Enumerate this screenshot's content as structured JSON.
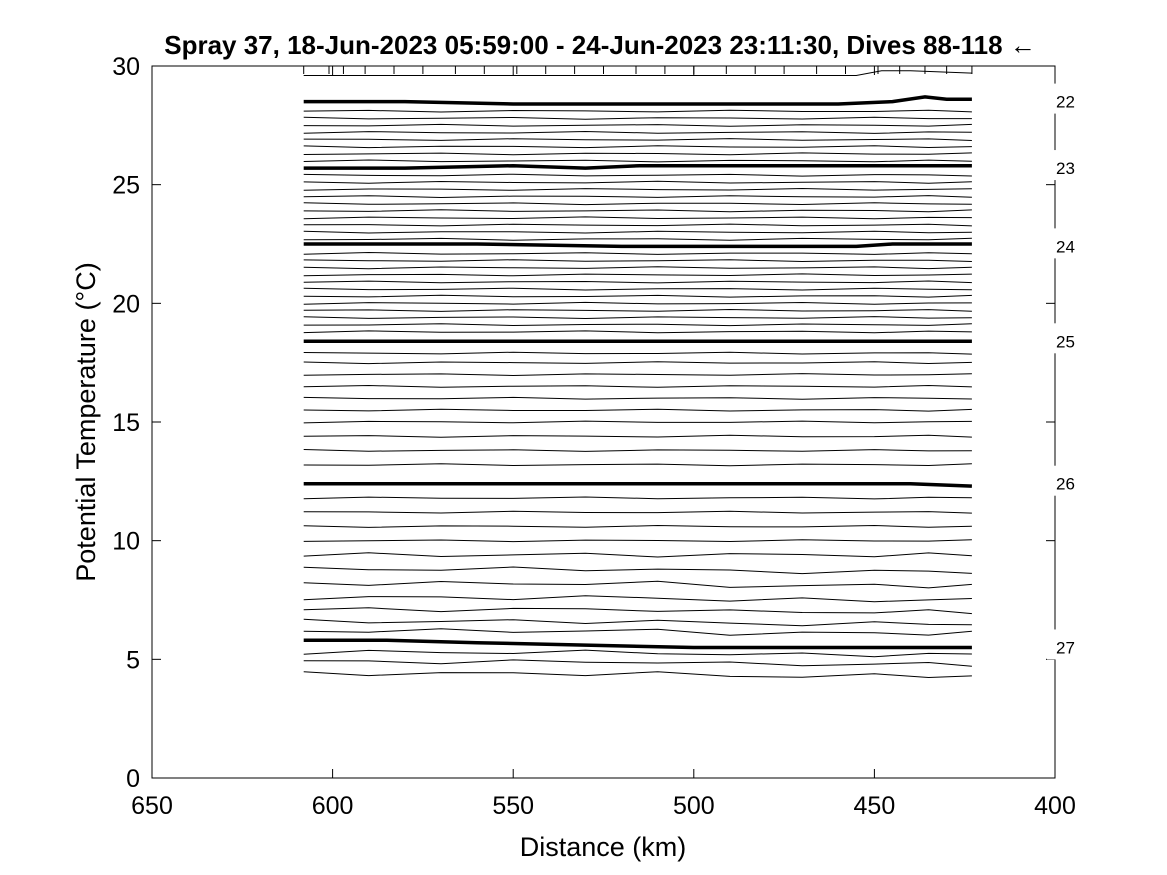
{
  "chart_data": {
    "type": "line",
    "title": "Spray 37, 18-Jun-2023 05:59:00 - 24-Jun-2023 23:11:30, Dives 88-118 ←",
    "xlabel": "Distance (km)",
    "ylabel": "Potential Temperature (°C)",
    "xlim": [
      650,
      400
    ],
    "ylim": [
      0,
      30
    ],
    "x_reversed": true,
    "grid": false,
    "x_tick_labels": [
      "650",
      "600",
      "550",
      "500",
      "450",
      "400"
    ],
    "y_tick_labels": [
      "0",
      "5",
      "10",
      "15",
      "20",
      "25",
      "30"
    ],
    "x_ticks": [
      650,
      600,
      550,
      500,
      450,
      400
    ],
    "y_ticks": [
      0,
      5,
      10,
      15,
      20,
      25,
      30
    ],
    "dive_positions_km": [
      608,
      601,
      597,
      591,
      583,
      575,
      566,
      558,
      549,
      541,
      533,
      525,
      516,
      508,
      500,
      491,
      483,
      475,
      466,
      458,
      449,
      443,
      436,
      430,
      423
    ],
    "isopycnal_labels": [
      {
        "text": "22",
        "y": 28.5
      },
      {
        "text": "23",
        "y": 25.7
      },
      {
        "text": "24",
        "y": 22.4
      },
      {
        "text": "25",
        "y": 18.4
      },
      {
        "text": "26",
        "y": 12.4
      },
      {
        "text": "27",
        "y": 5.5
      }
    ],
    "thick_contours": [
      {
        "name": "22",
        "x": [
          608,
          580,
          550,
          520,
          490,
          460,
          445,
          436,
          430,
          423
        ],
        "y": [
          28.5,
          28.5,
          28.4,
          28.4,
          28.4,
          28.4,
          28.5,
          28.7,
          28.6,
          28.6
        ]
      },
      {
        "name": "23",
        "x": [
          608,
          580,
          550,
          530,
          515,
          490,
          460,
          440,
          423
        ],
        "y": [
          25.7,
          25.7,
          25.8,
          25.7,
          25.8,
          25.8,
          25.8,
          25.8,
          25.8
        ]
      },
      {
        "name": "24",
        "x": [
          608,
          590,
          560,
          520,
          480,
          455,
          445,
          430,
          423
        ],
        "y": [
          22.5,
          22.5,
          22.5,
          22.4,
          22.4,
          22.4,
          22.5,
          22.5,
          22.5
        ]
      },
      {
        "name": "25",
        "x": [
          608,
          600,
          560,
          520,
          480,
          440,
          423
        ],
        "y": [
          18.4,
          18.4,
          18.4,
          18.4,
          18.4,
          18.4,
          18.4
        ]
      },
      {
        "name": "26",
        "x": [
          608,
          590,
          570,
          550,
          520,
          480,
          440,
          423
        ],
        "y": [
          12.4,
          12.4,
          12.4,
          12.4,
          12.4,
          12.4,
          12.4,
          12.3
        ]
      },
      {
        "name": "27",
        "x": [
          608,
          585,
          560,
          530,
          500,
          460,
          423
        ],
        "y": [
          5.8,
          5.8,
          5.7,
          5.6,
          5.5,
          5.5,
          5.5
        ]
      }
    ],
    "thin_contours_y_at_start": [
      28.1,
      27.8,
      27.5,
      27.2,
      26.9,
      26.6,
      26.3,
      26.0,
      25.4,
      25.1,
      24.8,
      24.5,
      24.2,
      23.9,
      23.6,
      23.3,
      23.0,
      22.7,
      22.1,
      21.8,
      21.5,
      21.2,
      20.9,
      20.6,
      20.3,
      20.0,
      19.7,
      19.4,
      19.1,
      18.8,
      17.9,
      17.5,
      17.0,
      16.5,
      16.0,
      15.5,
      15.0,
      14.4,
      13.8,
      13.2,
      11.8,
      11.2,
      10.6,
      10.0,
      9.4,
      8.8,
      8.2,
      7.6,
      7.1,
      6.6,
      6.2,
      5.3,
      4.9,
      4.4
    ],
    "thin_contour_x": [
      608,
      590,
      570,
      550,
      530,
      510,
      490,
      470,
      450,
      435,
      423
    ],
    "surface_line": {
      "x": [
        608,
        580,
        566,
        560,
        540,
        520,
        500,
        480,
        455,
        448,
        440,
        423
      ],
      "y": [
        29.6,
        29.6,
        29.6,
        29.6,
        29.6,
        29.6,
        29.6,
        29.6,
        29.6,
        29.8,
        29.8,
        29.7
      ]
    }
  }
}
